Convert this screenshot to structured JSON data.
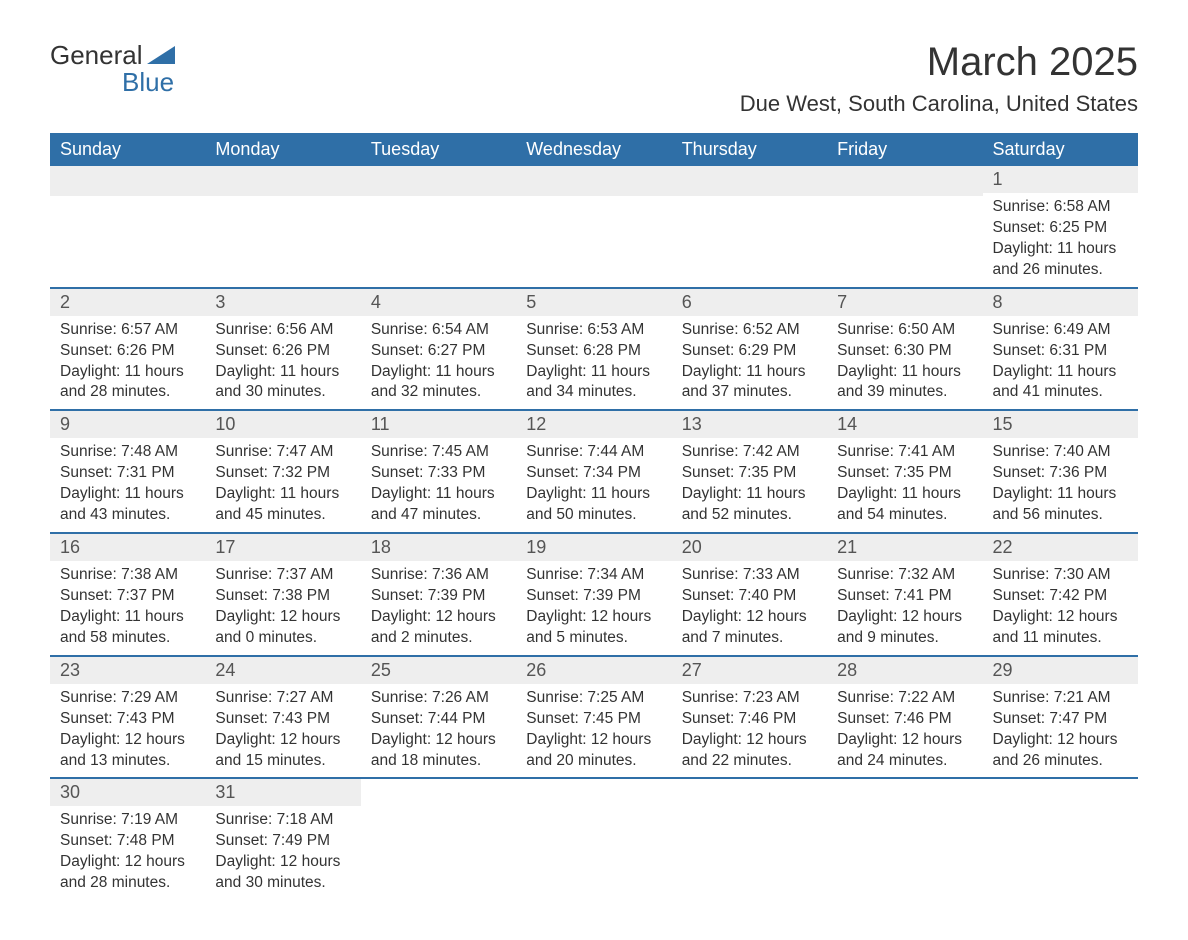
{
  "logo": {
    "word1": "General",
    "word2": "Blue",
    "accent_color": "#2f6fa7"
  },
  "title": "March 2025",
  "location": "Due West, South Carolina, United States",
  "colors": {
    "header_bg": "#2f6fa7",
    "header_text": "#ffffff",
    "dayrow_bg": "#eeeeee",
    "border": "#2f6fa7",
    "text": "#333333"
  },
  "weekdays": [
    "Sunday",
    "Monday",
    "Tuesday",
    "Wednesday",
    "Thursday",
    "Friday",
    "Saturday"
  ],
  "weeks": [
    [
      null,
      null,
      null,
      null,
      null,
      null,
      {
        "n": "1",
        "sunrise": "6:58 AM",
        "sunset": "6:25 PM",
        "daylight": "11 hours and 26 minutes."
      }
    ],
    [
      {
        "n": "2",
        "sunrise": "6:57 AM",
        "sunset": "6:26 PM",
        "daylight": "11 hours and 28 minutes."
      },
      {
        "n": "3",
        "sunrise": "6:56 AM",
        "sunset": "6:26 PM",
        "daylight": "11 hours and 30 minutes."
      },
      {
        "n": "4",
        "sunrise": "6:54 AM",
        "sunset": "6:27 PM",
        "daylight": "11 hours and 32 minutes."
      },
      {
        "n": "5",
        "sunrise": "6:53 AM",
        "sunset": "6:28 PM",
        "daylight": "11 hours and 34 minutes."
      },
      {
        "n": "6",
        "sunrise": "6:52 AM",
        "sunset": "6:29 PM",
        "daylight": "11 hours and 37 minutes."
      },
      {
        "n": "7",
        "sunrise": "6:50 AM",
        "sunset": "6:30 PM",
        "daylight": "11 hours and 39 minutes."
      },
      {
        "n": "8",
        "sunrise": "6:49 AM",
        "sunset": "6:31 PM",
        "daylight": "11 hours and 41 minutes."
      }
    ],
    [
      {
        "n": "9",
        "sunrise": "7:48 AM",
        "sunset": "7:31 PM",
        "daylight": "11 hours and 43 minutes."
      },
      {
        "n": "10",
        "sunrise": "7:47 AM",
        "sunset": "7:32 PM",
        "daylight": "11 hours and 45 minutes."
      },
      {
        "n": "11",
        "sunrise": "7:45 AM",
        "sunset": "7:33 PM",
        "daylight": "11 hours and 47 minutes."
      },
      {
        "n": "12",
        "sunrise": "7:44 AM",
        "sunset": "7:34 PM",
        "daylight": "11 hours and 50 minutes."
      },
      {
        "n": "13",
        "sunrise": "7:42 AM",
        "sunset": "7:35 PM",
        "daylight": "11 hours and 52 minutes."
      },
      {
        "n": "14",
        "sunrise": "7:41 AM",
        "sunset": "7:35 PM",
        "daylight": "11 hours and 54 minutes."
      },
      {
        "n": "15",
        "sunrise": "7:40 AM",
        "sunset": "7:36 PM",
        "daylight": "11 hours and 56 minutes."
      }
    ],
    [
      {
        "n": "16",
        "sunrise": "7:38 AM",
        "sunset": "7:37 PM",
        "daylight": "11 hours and 58 minutes."
      },
      {
        "n": "17",
        "sunrise": "7:37 AM",
        "sunset": "7:38 PM",
        "daylight": "12 hours and 0 minutes."
      },
      {
        "n": "18",
        "sunrise": "7:36 AM",
        "sunset": "7:39 PM",
        "daylight": "12 hours and 2 minutes."
      },
      {
        "n": "19",
        "sunrise": "7:34 AM",
        "sunset": "7:39 PM",
        "daylight": "12 hours and 5 minutes."
      },
      {
        "n": "20",
        "sunrise": "7:33 AM",
        "sunset": "7:40 PM",
        "daylight": "12 hours and 7 minutes."
      },
      {
        "n": "21",
        "sunrise": "7:32 AM",
        "sunset": "7:41 PM",
        "daylight": "12 hours and 9 minutes."
      },
      {
        "n": "22",
        "sunrise": "7:30 AM",
        "sunset": "7:42 PM",
        "daylight": "12 hours and 11 minutes."
      }
    ],
    [
      {
        "n": "23",
        "sunrise": "7:29 AM",
        "sunset": "7:43 PM",
        "daylight": "12 hours and 13 minutes."
      },
      {
        "n": "24",
        "sunrise": "7:27 AM",
        "sunset": "7:43 PM",
        "daylight": "12 hours and 15 minutes."
      },
      {
        "n": "25",
        "sunrise": "7:26 AM",
        "sunset": "7:44 PM",
        "daylight": "12 hours and 18 minutes."
      },
      {
        "n": "26",
        "sunrise": "7:25 AM",
        "sunset": "7:45 PM",
        "daylight": "12 hours and 20 minutes."
      },
      {
        "n": "27",
        "sunrise": "7:23 AM",
        "sunset": "7:46 PM",
        "daylight": "12 hours and 22 minutes."
      },
      {
        "n": "28",
        "sunrise": "7:22 AM",
        "sunset": "7:46 PM",
        "daylight": "12 hours and 24 minutes."
      },
      {
        "n": "29",
        "sunrise": "7:21 AM",
        "sunset": "7:47 PM",
        "daylight": "12 hours and 26 minutes."
      }
    ],
    [
      {
        "n": "30",
        "sunrise": "7:19 AM",
        "sunset": "7:48 PM",
        "daylight": "12 hours and 28 minutes."
      },
      {
        "n": "31",
        "sunrise": "7:18 AM",
        "sunset": "7:49 PM",
        "daylight": "12 hours and 30 minutes."
      },
      null,
      null,
      null,
      null,
      null
    ]
  ],
  "labels": {
    "sunrise": "Sunrise: ",
    "sunset": "Sunset: ",
    "daylight": "Daylight: "
  }
}
